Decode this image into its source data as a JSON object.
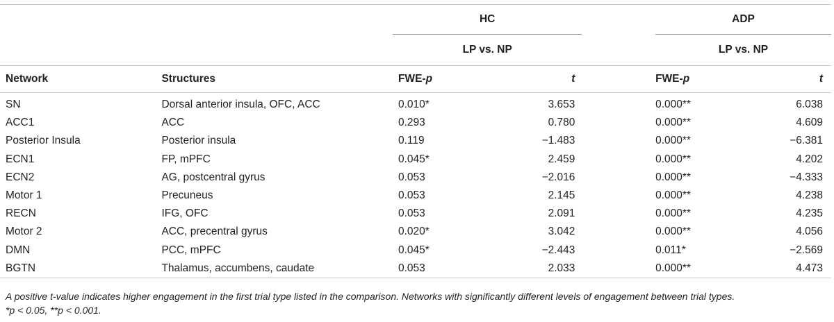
{
  "groups": {
    "hc": "HC",
    "adp": "ADP"
  },
  "comparisons": {
    "hc": "LP vs. NP",
    "adp": "LP vs. NP"
  },
  "columns": {
    "network": "Network",
    "structures": "Structures",
    "fwe_prefix": "FWE-",
    "fwe_p": "p",
    "t": "t"
  },
  "rows": [
    {
      "network": "SN",
      "structures": "Dorsal anterior insula, OFC, ACC",
      "hc_p": "0.010*",
      "hc_t": "3.653",
      "adp_p": "0.000**",
      "adp_t": "6.038"
    },
    {
      "network": "ACC1",
      "structures": "ACC",
      "hc_p": "0.293",
      "hc_t": "0.780",
      "adp_p": "0.000**",
      "adp_t": "4.609"
    },
    {
      "network": "Posterior Insula",
      "structures": "Posterior insula",
      "hc_p": "0.119",
      "hc_t": "−1.483",
      "adp_p": "0.000**",
      "adp_t": "−6.381"
    },
    {
      "network": "ECN1",
      "structures": "FP, mPFC",
      "hc_p": "0.045*",
      "hc_t": "2.459",
      "adp_p": "0.000**",
      "adp_t": "4.202"
    },
    {
      "network": "ECN2",
      "structures": "AG, postcentral gyrus",
      "hc_p": "0.053",
      "hc_t": "−2.016",
      "adp_p": "0.000**",
      "adp_t": "−4.333"
    },
    {
      "network": "Motor 1",
      "structures": "Precuneus",
      "hc_p": "0.053",
      "hc_t": "2.145",
      "adp_p": "0.000**",
      "adp_t": "4.238"
    },
    {
      "network": "RECN",
      "structures": "IFG, OFC",
      "hc_p": "0.053",
      "hc_t": "2.091",
      "adp_p": "0.000**",
      "adp_t": "4.235"
    },
    {
      "network": "Motor 2",
      "structures": "ACC, precentral gyrus",
      "hc_p": "0.020*",
      "hc_t": "3.042",
      "adp_p": "0.000**",
      "adp_t": "4.056"
    },
    {
      "network": "DMN",
      "structures": "PCC, mPFC",
      "hc_p": "0.045*",
      "hc_t": "−2.443",
      "adp_p": "0.011*",
      "adp_t": "−2.569"
    },
    {
      "network": "BGTN",
      "structures": "Thalamus, accumbens, caudate",
      "hc_p": "0.053",
      "hc_t": "2.033",
      "adp_p": "0.000**",
      "adp_t": "4.473"
    }
  ],
  "footnote": {
    "line1": "A positive t-value indicates higher engagement in the first trial type listed in the comparison. Networks with significantly different levels of engagement between trial types.",
    "line2": "*p < 0.05, **p < 0.001."
  }
}
